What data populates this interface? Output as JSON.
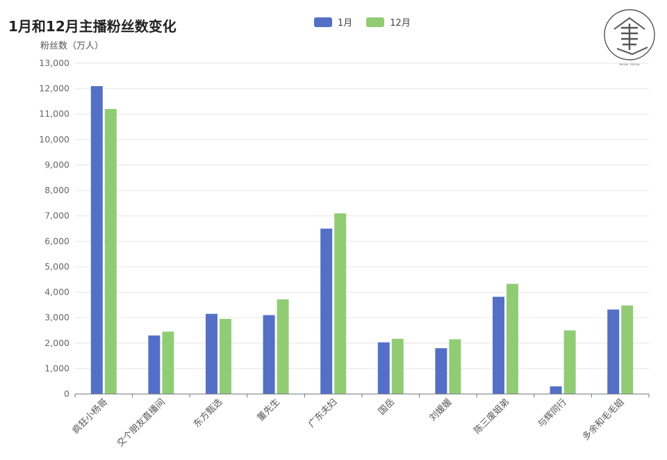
{
  "chart_data": {
    "type": "bar",
    "title": "1月和12月主播粉丝数变化",
    "ylabel": "粉丝数（万人）",
    "ylim": [
      0,
      13000
    ],
    "yticks": [
      0,
      1000,
      2000,
      3000,
      4000,
      5000,
      6000,
      7000,
      8000,
      9000,
      10000,
      11000,
      12000,
      13000
    ],
    "grid": true,
    "legend_position": "top-center",
    "categories": [
      "疯狂小杨哥",
      "交个朋友直播间",
      "东方甄选",
      "董先生",
      "广东夫妇",
      "国岳",
      "刘媛媛",
      "陈三废姐弟",
      "与辉同行",
      "多余和毛毛姐"
    ],
    "series": [
      {
        "name": "1月",
        "color": "#5470c6",
        "values": [
          12100,
          2300,
          3150,
          3100,
          6500,
          2030,
          1800,
          3820,
          300,
          3320
        ]
      },
      {
        "name": "12月",
        "color": "#91cc75",
        "values": [
          11200,
          2450,
          2950,
          3720,
          7100,
          2170,
          2150,
          4330,
          2500,
          3480
        ]
      }
    ]
  },
  "logo": {
    "text": "letter home",
    "icon": "book-house-logo-icon"
  }
}
